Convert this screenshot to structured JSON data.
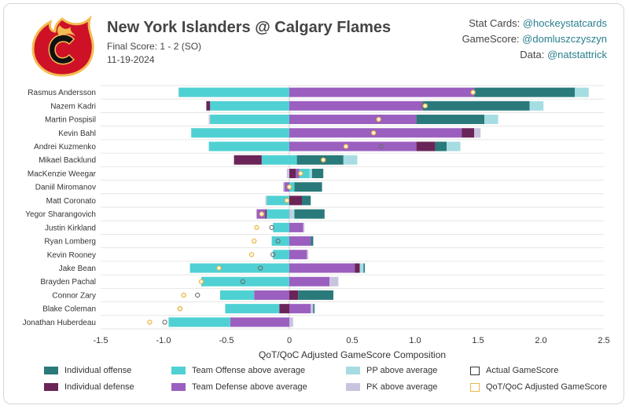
{
  "header": {
    "title": "New York Islanders @ Calgary Flames",
    "subtitle": "Final Score: 1 - 2 (SO)",
    "date": "11-19-2024"
  },
  "credits": [
    {
      "label": "Stat Cards: ",
      "handle": "@hockeystatcards"
    },
    {
      "label": "GameScore: ",
      "handle": "@domluszczyszyn"
    },
    {
      "label": "Data: ",
      "handle": "@natstattrick"
    }
  ],
  "colors": {
    "individual_offense": "#2a7a7b",
    "individual_defense": "#6b2458",
    "team_offense": "#4fd1d3",
    "team_defense": "#9b5fc0",
    "pp": "#a6dde2",
    "pk": "#c9c4de",
    "actual_marker": "#6b6b6b",
    "adjusted_marker": "#e8b84a",
    "logo_red": "#ce1126",
    "logo_yellow": "#f3bc52",
    "logo_black": "#111111"
  },
  "chart_data": {
    "type": "bar",
    "orientation": "horizontal-stacked",
    "xlabel": "QoT/QoC Adjusted GameScore Composition",
    "xlim": [
      -1.5,
      2.5
    ],
    "xticks": [
      -1.5,
      -1.0,
      -0.5,
      0,
      0.5,
      1.0,
      1.5,
      2.0,
      2.5
    ],
    "xtick_labels": [
      "-1.5",
      "-1.0",
      "-0.5",
      "0",
      "0.5",
      "1.0",
      "1.5",
      "2.0",
      "2.5"
    ],
    "grid": true,
    "legend_position": "bottom",
    "legend": [
      {
        "key": "individual_offense",
        "label": "Individual offense",
        "kind": "fill"
      },
      {
        "key": "team_offense",
        "label": "Team Offense above average",
        "kind": "fill"
      },
      {
        "key": "pp",
        "label": "PP above average",
        "kind": "fill"
      },
      {
        "key": "actual_marker",
        "label": "Actual GameScore",
        "kind": "outline"
      },
      {
        "key": "individual_defense",
        "label": "Individual defense",
        "kind": "fill"
      },
      {
        "key": "team_defense",
        "label": "Team Defense above average",
        "kind": "fill"
      },
      {
        "key": "pk",
        "label": "PK above average",
        "kind": "fill"
      },
      {
        "key": "adjusted_marker",
        "label": "QoT/QoC Adjusted GameScore",
        "kind": "outline"
      }
    ],
    "players": [
      {
        "name": "Rasmus Andersson",
        "segments": [
          [
            "team_offense",
            -0.88
          ],
          [
            "team_defense",
            1.47
          ],
          [
            "individual_offense",
            0.8
          ],
          [
            "pp",
            0.11
          ]
        ],
        "actual": 1.46,
        "adjusted": 1.46
      },
      {
        "name": "Nazem Kadri",
        "segments": [
          [
            "team_offense",
            -0.63
          ],
          [
            "individual_defense",
            -0.03
          ],
          [
            "team_defense",
            1.06
          ],
          [
            "individual_offense",
            0.85
          ],
          [
            "pp",
            0.11
          ]
        ],
        "actual": 1.06,
        "adjusted": 1.08
      },
      {
        "name": "Martin Pospisil",
        "segments": [
          [
            "team_offense",
            -0.63
          ],
          [
            "pk",
            -0.01
          ],
          [
            "team_defense",
            1.01
          ],
          [
            "individual_offense",
            0.54
          ],
          [
            "pp",
            0.11
          ]
        ],
        "actual": 0.71,
        "adjusted": 0.71
      },
      {
        "name": "Kevin Bahl",
        "segments": [
          [
            "team_offense",
            -0.78
          ],
          [
            "team_defense",
            1.37
          ],
          [
            "individual_defense",
            0.1
          ],
          [
            "pk",
            0.05
          ]
        ],
        "actual": 0.67,
        "adjusted": 0.67
      },
      {
        "name": "Andrei Kuzmenko",
        "segments": [
          [
            "team_offense",
            -0.64
          ],
          [
            "team_defense",
            1.01
          ],
          [
            "individual_defense",
            0.15
          ],
          [
            "individual_offense",
            0.09
          ],
          [
            "pp",
            0.11
          ]
        ],
        "actual": 0.73,
        "adjusted": 0.45
      },
      {
        "name": "Mikael Backlund",
        "segments": [
          [
            "team_offense",
            -0.22
          ],
          [
            "individual_defense",
            -0.22
          ],
          [
            "team_offense",
            0.06
          ],
          [
            "individual_offense",
            0.37
          ],
          [
            "pp",
            0.11
          ]
        ],
        "actual": 0.27,
        "adjusted": 0.27
      },
      {
        "name": "MacKenzie Weegar",
        "segments": [
          [
            "pk",
            -0.02
          ],
          [
            "individual_defense",
            0.05
          ],
          [
            "team_defense",
            0.03
          ],
          [
            "team_offense",
            0.08
          ],
          [
            "pp",
            0.02
          ],
          [
            "individual_offense",
            0.09
          ]
        ],
        "actual": 0.09,
        "adjusted": 0.09
      },
      {
        "name": "Daniil Miromanov",
        "segments": [
          [
            "team_defense",
            -0.04
          ],
          [
            "pk",
            -0.01
          ],
          [
            "team_offense",
            0.04
          ],
          [
            "individual_offense",
            0.22
          ]
        ],
        "actual": 0.0,
        "adjusted": 0.0
      },
      {
        "name": "Matt Coronato",
        "segments": [
          [
            "team_offense",
            -0.18
          ],
          [
            "pk",
            -0.01
          ],
          [
            "individual_defense",
            0.1
          ],
          [
            "individual_offense",
            0.07
          ]
        ],
        "actual": -0.02,
        "adjusted": -0.02
      },
      {
        "name": "Yegor Sharangovich",
        "segments": [
          [
            "team_offense",
            -0.18
          ],
          [
            "individual_defense",
            -0.01
          ],
          [
            "team_defense",
            -0.07
          ],
          [
            "pk",
            0.02
          ],
          [
            "pp",
            0.02
          ],
          [
            "individual_offense",
            0.24
          ]
        ],
        "actual": -0.22,
        "adjusted": -0.22
      },
      {
        "name": "Justin Kirkland",
        "segments": [
          [
            "team_offense",
            -0.13
          ],
          [
            "team_defense",
            0.11
          ],
          [
            "pk",
            0.01
          ]
        ],
        "actual": -0.14,
        "adjusted": -0.26
      },
      {
        "name": "Ryan Lomberg",
        "segments": [
          [
            "team_offense",
            -0.14
          ],
          [
            "team_defense",
            0.17
          ],
          [
            "individual_offense",
            0.02
          ]
        ],
        "actual": -0.09,
        "adjusted": -0.28
      },
      {
        "name": "Kevin Rooney",
        "segments": [
          [
            "team_offense",
            -0.13
          ],
          [
            "team_defense",
            0.14
          ],
          [
            "pk",
            0.01
          ]
        ],
        "actual": -0.13,
        "adjusted": -0.3
      },
      {
        "name": "Jake Bean",
        "segments": [
          [
            "team_offense",
            -0.79
          ],
          [
            "team_defense",
            0.52
          ],
          [
            "individual_defense",
            0.04
          ],
          [
            "pp",
            0.03
          ],
          [
            "individual_offense",
            0.01
          ]
        ],
        "actual": -0.23,
        "adjusted": -0.56
      },
      {
        "name": "Brayden Pachal",
        "segments": [
          [
            "team_offense",
            -0.7
          ],
          [
            "team_defense",
            0.32
          ],
          [
            "pk",
            0.07
          ]
        ],
        "actual": -0.37,
        "adjusted": -0.7
      },
      {
        "name": "Connor Zary",
        "segments": [
          [
            "team_defense",
            -0.28
          ],
          [
            "team_offense",
            -0.27
          ],
          [
            "individual_defense",
            0.07
          ],
          [
            "individual_offense",
            0.28
          ]
        ],
        "actual": -0.73,
        "adjusted": -0.84
      },
      {
        "name": "Blake Coleman",
        "segments": [
          [
            "individual_defense",
            -0.08
          ],
          [
            "team_offense",
            -0.43
          ],
          [
            "team_defense",
            0.17
          ],
          [
            "pk",
            0.02
          ],
          [
            "individual_offense",
            0.01
          ]
        ],
        "actual": -0.87,
        "adjusted": -0.87
      },
      {
        "name": "Jonathan Huberdeau",
        "segments": [
          [
            "team_defense",
            -0.47
          ],
          [
            "team_offense",
            -0.49
          ],
          [
            "pk",
            0.03
          ]
        ],
        "actual": -0.99,
        "adjusted": -1.11
      }
    ]
  }
}
